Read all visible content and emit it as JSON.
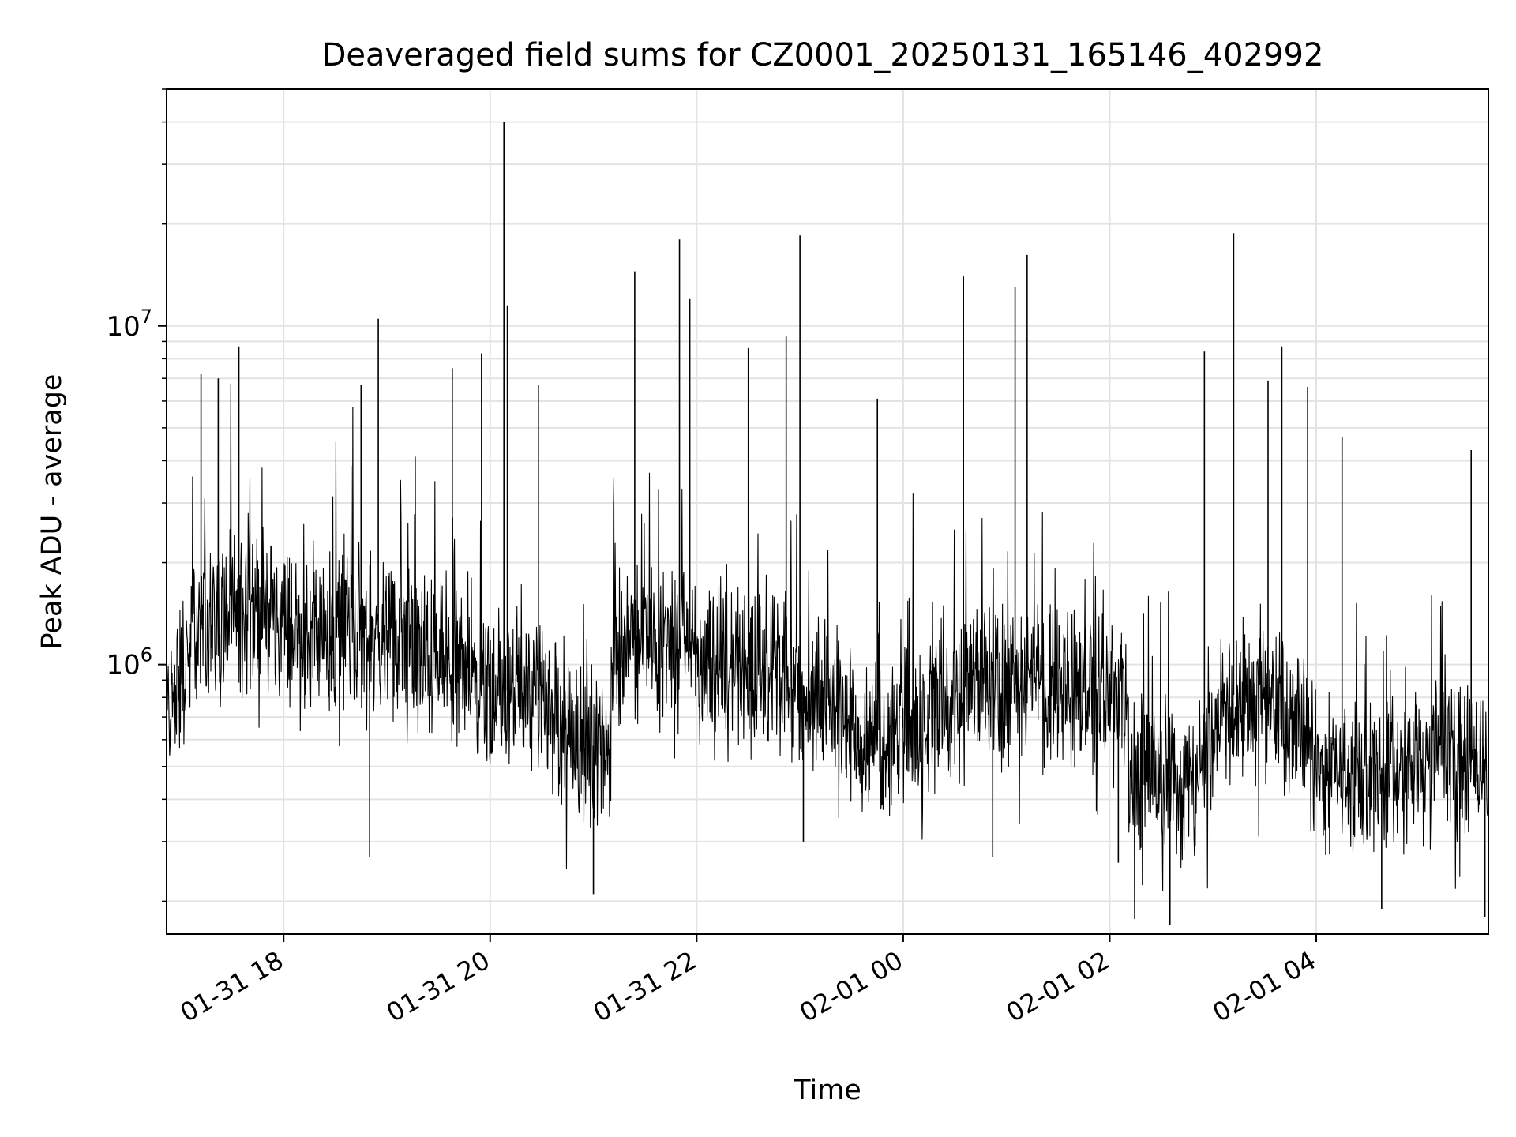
{
  "chart_data": {
    "type": "line",
    "title": "Deaveraged field sums for CZ0001_20250131_165146_402992",
    "xlabel": "Time",
    "ylabel": "Peak ADU - average",
    "y_scale": "log",
    "ylim": [
      160000,
      50000000
    ],
    "xlim": [
      "2025-01-31 16:52",
      "2025-02-01 05:40"
    ],
    "grid": true,
    "line_color": "#000000",
    "grid_color": "#e3e3e3",
    "x_ticks": [
      {
        "t": "2025-01-31 18:00",
        "label": "01-31 18"
      },
      {
        "t": "2025-01-31 20:00",
        "label": "01-31 20"
      },
      {
        "t": "2025-01-31 22:00",
        "label": "01-31 22"
      },
      {
        "t": "2025-02-01 00:00",
        "label": "02-01 00"
      },
      {
        "t": "2025-02-01 02:00",
        "label": "02-01 02"
      },
      {
        "t": "2025-02-01 04:00",
        "label": "02-01 04"
      }
    ],
    "y_ticks": [
      {
        "value": 1000000,
        "base": "10",
        "exp": "6"
      },
      {
        "value": 10000000,
        "base": "10",
        "exp": "7"
      }
    ],
    "series": [
      {
        "baseline": [
          {
            "x": "2025-01-31 16:52",
            "y": 700000
          },
          {
            "x": "2025-01-31 17:10",
            "y": 1300000
          },
          {
            "x": "2025-01-31 17:40",
            "y": 1500000
          },
          {
            "x": "2025-01-31 18:15",
            "y": 1200000
          },
          {
            "x": "2025-01-31 18:40",
            "y": 1300000
          },
          {
            "x": "2025-01-31 19:10",
            "y": 1100000
          },
          {
            "x": "2025-01-31 19:50",
            "y": 900000
          },
          {
            "x": "2025-01-31 20:30",
            "y": 780000
          },
          {
            "x": "2025-01-31 21:10",
            "y": 520000
          },
          {
            "x": "2025-01-31 21:12",
            "y": 1200000
          },
          {
            "x": "2025-01-31 21:40",
            "y": 1150000
          },
          {
            "x": "2025-01-31 22:30",
            "y": 1000000
          },
          {
            "x": "2025-01-31 23:20",
            "y": 800000
          },
          {
            "x": "2025-01-31 23:40",
            "y": 580000
          },
          {
            "x": "2025-02-01 00:20",
            "y": 700000
          },
          {
            "x": "2025-02-01 00:40",
            "y": 850000
          },
          {
            "x": "2025-02-01 01:30",
            "y": 900000
          },
          {
            "x": "2025-02-01 02:10",
            "y": 800000
          },
          {
            "x": "2025-02-01 02:12",
            "y": 480000
          },
          {
            "x": "2025-02-01 02:50",
            "y": 450000
          },
          {
            "x": "2025-02-01 03:10",
            "y": 820000
          },
          {
            "x": "2025-02-01 03:50",
            "y": 700000
          },
          {
            "x": "2025-02-01 04:00",
            "y": 480000
          },
          {
            "x": "2025-02-01 05:40",
            "y": 520000
          }
        ],
        "spikes": [
          {
            "x": "2025-01-31 17:12",
            "y": 7200000
          },
          {
            "x": "2025-01-31 17:22",
            "y": 7000000
          },
          {
            "x": "2025-01-31 17:34",
            "y": 8700000
          },
          {
            "x": "2025-01-31 18:55",
            "y": 10500000
          },
          {
            "x": "2025-01-31 18:45",
            "y": 6700000
          },
          {
            "x": "2025-01-31 18:50",
            "y": 270000
          },
          {
            "x": "2025-01-31 19:38",
            "y": 7500000
          },
          {
            "x": "2025-01-31 19:55",
            "y": 8300000
          },
          {
            "x": "2025-01-31 20:08",
            "y": 40000000
          },
          {
            "x": "2025-01-31 20:10",
            "y": 11500000
          },
          {
            "x": "2025-01-31 20:28",
            "y": 6700000
          },
          {
            "x": "2025-01-31 21:00",
            "y": 210000
          },
          {
            "x": "2025-01-31 21:24",
            "y": 14500000
          },
          {
            "x": "2025-01-31 21:50",
            "y": 18000000
          },
          {
            "x": "2025-01-31 21:56",
            "y": 12000000
          },
          {
            "x": "2025-01-31 22:30",
            "y": 8600000
          },
          {
            "x": "2025-01-31 23:00",
            "y": 18500000
          },
          {
            "x": "2025-01-31 23:02",
            "y": 300000
          },
          {
            "x": "2025-01-31 22:52",
            "y": 9300000
          },
          {
            "x": "2025-01-31 23:45",
            "y": 6100000
          },
          {
            "x": "2025-02-01 00:35",
            "y": 14000000
          },
          {
            "x": "2025-02-01 00:52",
            "y": 270000
          },
          {
            "x": "2025-02-01 01:05",
            "y": 13000000
          },
          {
            "x": "2025-02-01 01:12",
            "y": 16200000
          },
          {
            "x": "2025-02-01 02:05",
            "y": 260000
          },
          {
            "x": "2025-02-01 02:35",
            "y": 170000
          },
          {
            "x": "2025-02-01 02:55",
            "y": 8400000
          },
          {
            "x": "2025-02-01 03:12",
            "y": 18800000
          },
          {
            "x": "2025-02-01 03:32",
            "y": 6900000
          },
          {
            "x": "2025-02-01 03:40",
            "y": 8700000
          },
          {
            "x": "2025-02-01 03:55",
            "y": 6600000
          },
          {
            "x": "2025-02-01 04:15",
            "y": 4700000
          },
          {
            "x": "2025-02-01 04:38",
            "y": 190000
          },
          {
            "x": "2025-02-01 05:30",
            "y": 4300000
          },
          {
            "x": "2025-02-01 05:38",
            "y": 180000
          }
        ]
      }
    ]
  }
}
